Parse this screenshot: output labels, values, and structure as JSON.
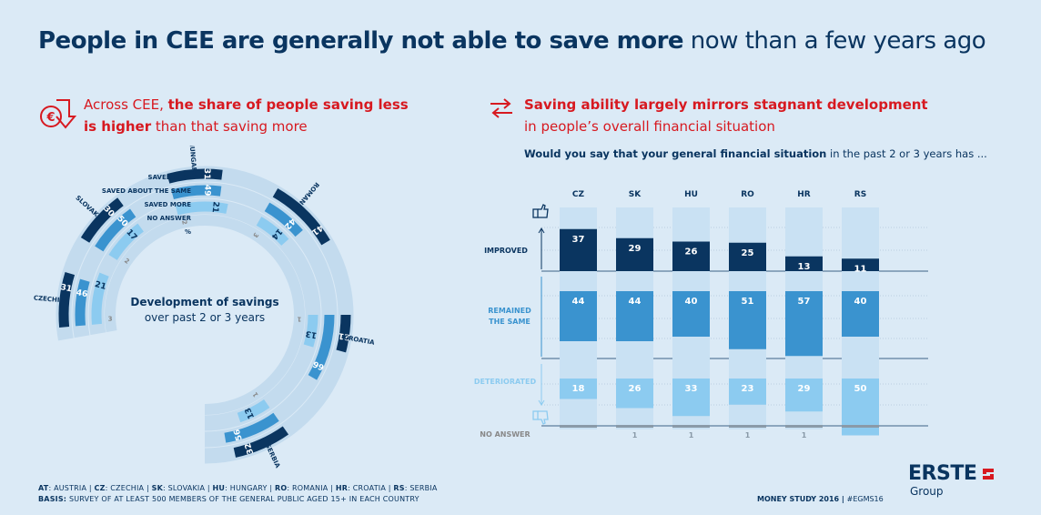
{
  "title": {
    "bold": "People in CEE are generally not able to save more",
    "rest": " now than a few years ago"
  },
  "left": {
    "subtitle_pre": "Across CEE, ",
    "subtitle_bold1": "the share of people saving less",
    "subtitle_bold2": "is higher",
    "subtitle_post": " than that saving more",
    "icon": "euro-down-arrow-icon",
    "center_title": "Development of savings",
    "center_sub": "over past 2 or 3 years",
    "legend": [
      "SAVED LESS",
      "SAVED ABOUT THE SAME",
      "SAVED MORE",
      "NO ANSWER",
      "%"
    ]
  },
  "right": {
    "icon": "swap-arrows-icon",
    "subtitle_bold": "Saving ability largely mirrors stagnant development",
    "subtitle_rest": "in people’s overall financial situation",
    "question_bold": "Would you say that your general financial situation",
    "question_rest": " in the past 2 or 3 years has ...",
    "row_labels": [
      "IMPROVED",
      "REMAINED\nTHE SAME",
      "DETERIORATED",
      "NO ANSWER"
    ]
  },
  "footer": {
    "line1": [
      [
        "AT",
        ": AUSTRIA | "
      ],
      [
        "CZ",
        ": CZECHIA | "
      ],
      [
        "SK",
        ": SLOVAKIA | "
      ],
      [
        "HU",
        ": HUNGARY | "
      ],
      [
        "RO",
        ": ROMANIA | "
      ],
      [
        "HR",
        ": CROATIA | "
      ],
      [
        "RS",
        ": SERBIA"
      ]
    ],
    "line2_k": "BASIS:",
    "line2_v": " SURVEY OF AT LEAST 500 MEMBERS OF THE GENERAL PUBLIC AGED 15+ IN EACH COUNTRY",
    "study": "MONEY STUDY 2016 | ",
    "hashtag": "#EGMS16",
    "logo": "ERSTE",
    "logo_sub": "Group"
  },
  "colors": {
    "dark": "#0a3560",
    "mid": "#3a93cf",
    "light": "#8ccbf0",
    "red": "#d71920",
    "bg": "#dbeaf6"
  },
  "chart_data": [
    {
      "type": "radial-bar",
      "title": "Development of savings over past 2 or 3 years",
      "series_names": [
        "SAVED LESS",
        "SAVED ABOUT THE SAME",
        "SAVED MORE",
        "NO ANSWER"
      ],
      "categories": [
        "CZECHIA",
        "SLOVAKIA",
        "HUNGARY",
        "ROMANIA",
        "CROATIA",
        "SERBIA"
      ],
      "series": [
        {
          "name": "SAVED LESS",
          "values": [
            31,
            30,
            31,
            41,
            21,
            32
          ]
        },
        {
          "name": "SAVED ABOUT THE SAME",
          "values": [
            46,
            50,
            49,
            42,
            66,
            56
          ]
        },
        {
          "name": "SAVED MORE",
          "values": [
            21,
            17,
            21,
            14,
            13,
            13
          ]
        },
        {
          "name": "NO ANSWER",
          "values": [
            3,
            2,
            2,
            3,
            1,
            1
          ]
        }
      ],
      "unit": "%"
    },
    {
      "type": "bar",
      "title": "Would you say that your general financial situation in the past 2 or 3 years has ...",
      "categories": [
        "CZ",
        "SK",
        "HU",
        "RO",
        "HR",
        "RS"
      ],
      "series": [
        {
          "name": "IMPROVED",
          "values": [
            37,
            29,
            26,
            25,
            13,
            11
          ]
        },
        {
          "name": "REMAINED THE SAME",
          "values": [
            44,
            44,
            40,
            51,
            57,
            40
          ]
        },
        {
          "name": "DETERIORATED",
          "values": [
            18,
            26,
            33,
            23,
            29,
            50
          ]
        },
        {
          "name": "NO ANSWER",
          "values": [
            null,
            1,
            1,
            1,
            1,
            null
          ]
        }
      ]
    }
  ]
}
